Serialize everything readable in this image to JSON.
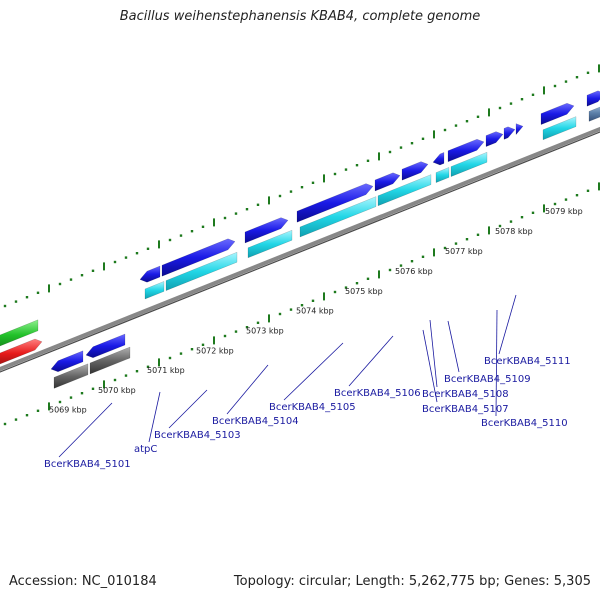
{
  "title": "Bacillus weihenstephanensis KBAB4, complete genome",
  "footer": {
    "accession": "Accession: NC_010184",
    "summary": "Topology: circular; Length: 5,262,775 bp; Genes: 5,305"
  },
  "scale_labels": [
    "5069 kbp",
    "5070 kbp",
    "5071 kbp",
    "5072 kbp",
    "5073 kbp",
    "5074 kbp",
    "5075 kbp",
    "5076 kbp",
    "5077 kbp",
    "5078 kbp",
    "5079 kbp"
  ],
  "gene_labels": [
    "BcerKBAB4_5101",
    "atpC",
    "BcerKBAB4_5103",
    "BcerKBAB4_5104",
    "BcerKBAB4_5105",
    "BcerKBAB4_5106",
    "BcerKBAB4_5107",
    "BcerKBAB4_5108",
    "BcerKBAB4_5109",
    "BcerKBAB4_5110",
    "BcerKBAB4_5111"
  ],
  "colors": {
    "forward_gene": "#1a1ae6",
    "cds_feature": "#22d6e6",
    "other_feature": "#666666",
    "rna_gene": "#e61a1a",
    "green_gene": "#22c22a",
    "backbone": "#888888",
    "ticks": "#1e7a1e",
    "gene_label": "#1a1aa0"
  }
}
